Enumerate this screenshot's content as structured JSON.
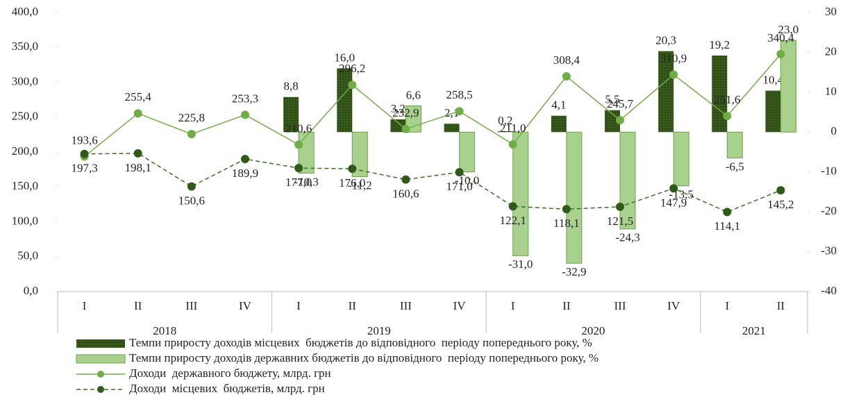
{
  "chart_data": {
    "type": "bar",
    "categories": [
      "I",
      "II",
      "III",
      "IV",
      "I",
      "II",
      "III",
      "IV",
      "I",
      "II",
      "III",
      "IV",
      "I",
      "II"
    ],
    "groups": [
      {
        "label": "2018",
        "size": 4
      },
      {
        "label": "2019",
        "size": 4
      },
      {
        "label": "2020",
        "size": 4
      },
      {
        "label": "2021",
        "size": 2
      }
    ],
    "ylim": [
      0,
      400
    ],
    "yticks": [
      {
        "value": 0,
        "label": "0,0"
      },
      {
        "value": 50,
        "label": "50,0"
      },
      {
        "value": 100,
        "label": "100,0"
      },
      {
        "value": 150,
        "label": "150,0"
      },
      {
        "value": 200,
        "label": "200,0"
      },
      {
        "value": 250,
        "label": "250,0"
      },
      {
        "value": 300,
        "label": "300,0"
      },
      {
        "value": 350,
        "label": "350,0"
      },
      {
        "value": 400,
        "label": "400,0"
      }
    ],
    "y2lim": [
      -40,
      30
    ],
    "y2ticks": [
      -40,
      -30,
      -20,
      -10,
      0,
      10,
      20,
      30
    ],
    "series": [
      {
        "name": "Темпи приросту доходів місцевих  бюджетів до відповідного  періоду попереднього року, %",
        "type": "bar",
        "axis": "y2",
        "color": "#375a1c",
        "values": [
          null,
          null,
          null,
          null,
          8.8,
          16.0,
          3.2,
          2.1,
          0.2,
          4.1,
          5.5,
          20.3,
          19.2,
          10.4
        ],
        "value_labels": [
          null,
          null,
          null,
          null,
          "8,8",
          "16,0",
          "3,2",
          "2,1",
          "0,2",
          "4,1",
          "5,5",
          "20,3",
          "19,2",
          "10,4"
        ]
      },
      {
        "name": "Темпи приросту доходів державних бюджетів до відповідного  періоду попереднього року, %",
        "type": "bar",
        "axis": "y2",
        "color": "#a9d18e",
        "values": [
          null,
          null,
          null,
          null,
          -10.3,
          -11.2,
          6.6,
          -10.0,
          -31.0,
          -32.9,
          -24.3,
          -13.5,
          -6.5,
          23.0
        ],
        "value_labels": [
          null,
          null,
          null,
          null,
          "-10,3",
          "-11,2",
          "6,6",
          "-10,0",
          "-31,0",
          "-32,9",
          "-24,3",
          "-13,5",
          "-6,5",
          "23,0"
        ]
      },
      {
        "name": "Доходи  державного бюджету, млрд. грн",
        "type": "line",
        "axis": "y",
        "color": "#70ad47",
        "values": [
          193.6,
          255.4,
          225.8,
          253.3,
          210.6,
          296.2,
          232.9,
          258.5,
          211.0,
          308.4,
          245.7,
          310.9,
          251.6,
          340.4
        ],
        "value_labels": [
          "193,6",
          "255,4",
          "225,8",
          "253,3",
          "210,6",
          "296,2",
          "232,9",
          "258,5",
          "211,0",
          "308,4",
          "245,7",
          "310,9",
          "251,6",
          "340,4"
        ]
      },
      {
        "name": "Доходи  місцевих  бюджетів, млрд. грн",
        "type": "line",
        "axis": "y",
        "dashed": true,
        "color": "#3d6b22",
        "values": [
          197.3,
          198.1,
          150.6,
          189.9,
          177.0,
          176.0,
          160.6,
          171.0,
          122.1,
          118.1,
          121.5,
          147.9,
          114.1,
          145.2
        ],
        "value_labels": [
          "197,3",
          "198,1",
          "150,6",
          "189,9",
          "177,0",
          "176,0",
          "160,6",
          "171,0",
          "122,1",
          "118,1",
          "121,5",
          "147,9",
          "114,1",
          "145,2"
        ]
      }
    ]
  }
}
